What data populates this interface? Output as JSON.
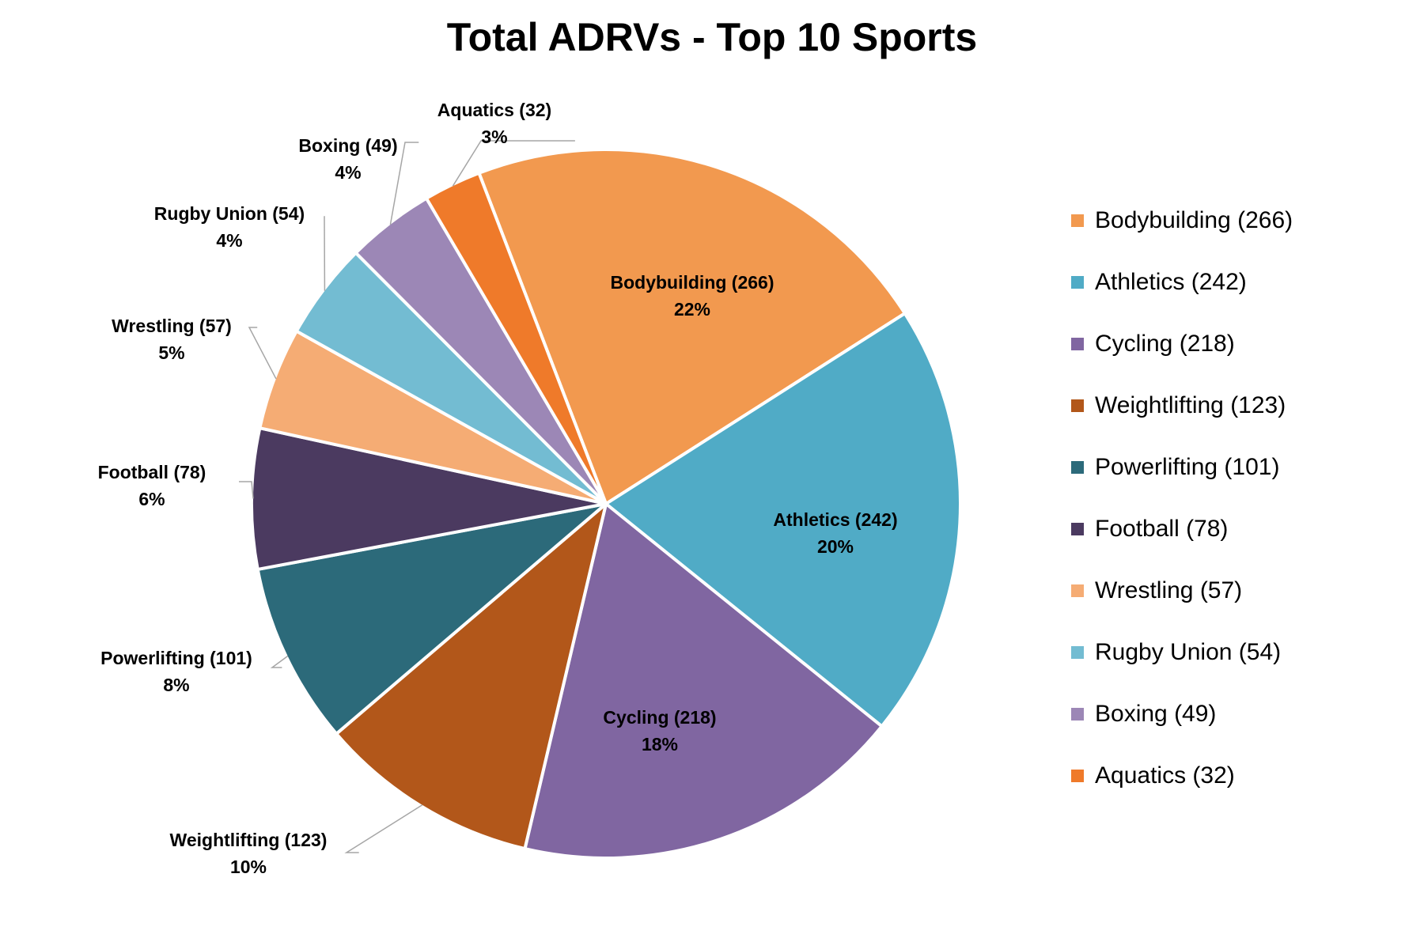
{
  "chart_data": {
    "type": "pie",
    "title": "Total ADRVs - Top 10 Sports",
    "legend_position": "right",
    "slices": [
      {
        "label": "Bodybuilding (266)",
        "value": 266,
        "percent_label": "22%",
        "color": "#F2994F"
      },
      {
        "label": "Athletics (242)",
        "value": 242,
        "percent_label": "20%",
        "color": "#50ABC6"
      },
      {
        "label": "Cycling (218)",
        "value": 218,
        "percent_label": "18%",
        "color": "#8066A1"
      },
      {
        "label": "Weightlifting (123)",
        "value": 123,
        "percent_label": "10%",
        "color": "#B2571A"
      },
      {
        "label": "Powerlifting (101)",
        "value": 101,
        "percent_label": "8%",
        "color": "#2C6A7A"
      },
      {
        "label": "Football (78)",
        "value": 78,
        "percent_label": "6%",
        "color": "#4B3A60"
      },
      {
        "label": "Wrestling (57)",
        "value": 57,
        "percent_label": "5%",
        "color": "#F5AC74"
      },
      {
        "label": "Rugby Union (54)",
        "value": 54,
        "percent_label": "4%",
        "color": "#73BCD2"
      },
      {
        "label": "Boxing (49)",
        "value": 49,
        "percent_label": "4%",
        "color": "#9C87B6"
      },
      {
        "label": "Aquatics (32)",
        "value": 32,
        "percent_label": "3%",
        "color": "#EF7A2A"
      }
    ]
  }
}
